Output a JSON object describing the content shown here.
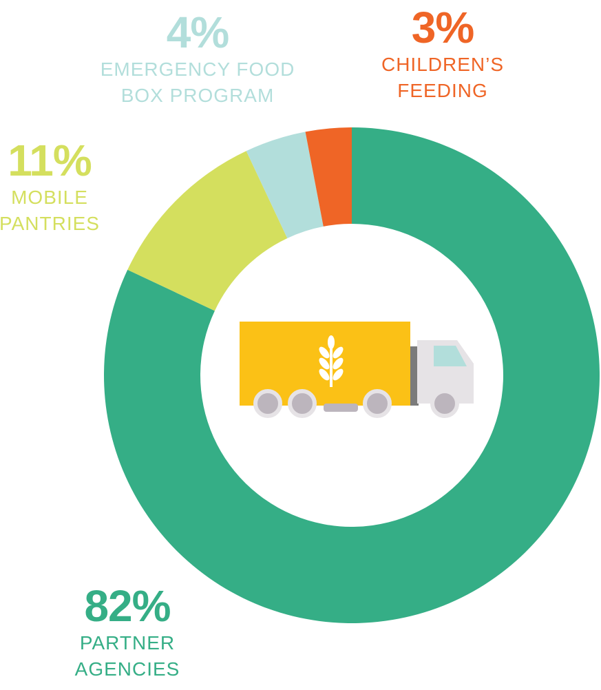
{
  "chart_data": {
    "type": "pie",
    "categories": [
      "PARTNER AGENCIES",
      "MOBILE PANTRIES",
      "EMERGENCY FOOD BOX PROGRAM",
      "CHILDREN’S FEEDING"
    ],
    "values": [
      82,
      11,
      4,
      3
    ],
    "value_labels": [
      "82%",
      "11%",
      "4%",
      "3%"
    ],
    "colors": [
      "#35ae86",
      "#d4df5e",
      "#b2dedb",
      "#ef6526"
    ],
    "donut": true
  }
}
